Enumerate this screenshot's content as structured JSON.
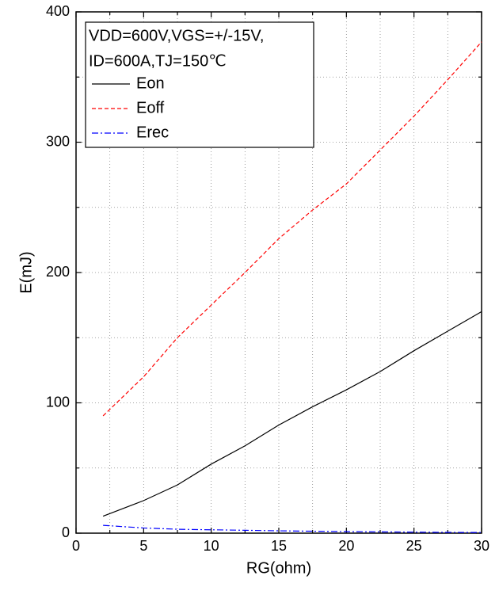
{
  "chart_data": {
    "type": "line",
    "x_label": "RG(ohm)",
    "y_label": "E(mJ)",
    "legend_title": [
      "VDD=600V,VGS=+/-15V,",
      "ID=600A,TJ=150℃"
    ],
    "x": [
      2,
      5,
      7.5,
      10,
      12.5,
      15,
      17.5,
      20,
      22.5,
      25,
      27.5,
      30
    ],
    "series": [
      {
        "name": "Eon",
        "color": "#000000",
        "dash": "solid",
        "values": [
          13,
          25,
          37,
          53,
          67,
          83,
          97,
          110,
          124,
          140,
          155,
          170
        ]
      },
      {
        "name": "Eoff",
        "color": "#ff0000",
        "dash": "dash",
        "values": [
          90,
          120,
          150,
          175,
          200,
          226,
          248,
          268,
          294,
          320,
          348,
          377
        ]
      },
      {
        "name": "Erec",
        "color": "#0000ff",
        "dash": "dashdot",
        "values": [
          6,
          4,
          3,
          2.6,
          2.2,
          1.8,
          1.5,
          1.2,
          1,
          0.8,
          0.6,
          0.5
        ]
      }
    ],
    "xlim": [
      0,
      30
    ],
    "xticks": [
      0,
      5,
      10,
      15,
      20,
      25,
      30
    ],
    "xminorticks": [
      2.5,
      7.5,
      12.5,
      17.5,
      22.5,
      27.5
    ],
    "ylim": [
      0,
      400
    ],
    "yticks": [
      0,
      100,
      200,
      300,
      400
    ],
    "yminorticks": [
      50,
      150,
      250,
      350
    ],
    "grid": true,
    "legend": "upper left"
  }
}
